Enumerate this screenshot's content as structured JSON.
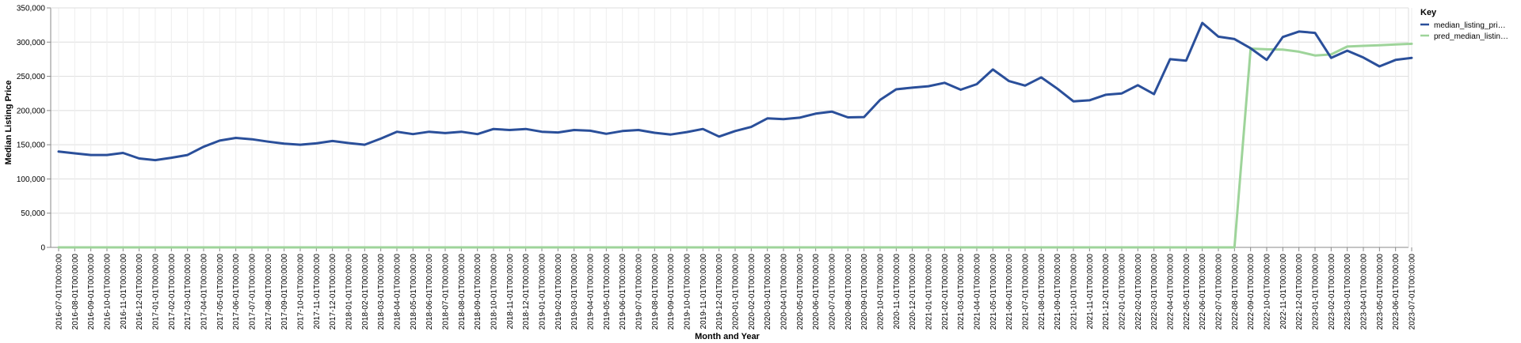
{
  "chart_data": {
    "type": "line",
    "title": "",
    "xlabel": "Month and Year",
    "ylabel": "Median Listing Price",
    "ylim": [
      0,
      350000
    ],
    "yticks": [
      "0",
      "50,000",
      "100,000",
      "150,000",
      "200,000",
      "250,000",
      "300,000",
      "350,000"
    ],
    "ytick_values": [
      0,
      50000,
      100000,
      150000,
      200000,
      250000,
      300000,
      350000
    ],
    "grid": true,
    "legend_position": "right",
    "legend_title": "Key",
    "categories": [
      "2016-07-01T00:00:00",
      "2016-08-01T00:00:00",
      "2016-09-01T00:00:00",
      "2016-10-01T00:00:00",
      "2016-11-01T00:00:00",
      "2016-12-01T00:00:00",
      "2017-01-01T00:00:00",
      "2017-02-01T00:00:00",
      "2017-03-01T00:00:00",
      "2017-04-01T00:00:00",
      "2017-05-01T00:00:00",
      "2017-06-01T00:00:00",
      "2017-07-01T00:00:00",
      "2017-08-01T00:00:00",
      "2017-09-01T00:00:00",
      "2017-10-01T00:00:00",
      "2017-11-01T00:00:00",
      "2017-12-01T00:00:00",
      "2018-01-01T00:00:00",
      "2018-02-01T00:00:00",
      "2018-03-01T00:00:00",
      "2018-04-01T00:00:00",
      "2018-05-01T00:00:00",
      "2018-06-01T00:00:00",
      "2018-07-01T00:00:00",
      "2018-08-01T00:00:00",
      "2018-09-01T00:00:00",
      "2018-10-01T00:00:00",
      "2018-11-01T00:00:00",
      "2018-12-01T00:00:00",
      "2019-01-01T00:00:00",
      "2019-02-01T00:00:00",
      "2019-03-01T00:00:00",
      "2019-04-01T00:00:00",
      "2019-05-01T00:00:00",
      "2019-06-01T00:00:00",
      "2019-07-01T00:00:00",
      "2019-08-01T00:00:00",
      "2019-09-01T00:00:00",
      "2019-10-01T00:00:00",
      "2019-11-01T00:00:00",
      "2019-12-01T00:00:00",
      "2020-01-01T00:00:00",
      "2020-02-01T00:00:00",
      "2020-03-01T00:00:00",
      "2020-04-01T00:00:00",
      "2020-05-01T00:00:00",
      "2020-06-01T00:00:00",
      "2020-07-01T00:00:00",
      "2020-08-01T00:00:00",
      "2020-09-01T00:00:00",
      "2020-10-01T00:00:00",
      "2020-11-01T00:00:00",
      "2020-12-01T00:00:00",
      "2021-01-01T00:00:00",
      "2021-02-01T00:00:00",
      "2021-03-01T00:00:00",
      "2021-04-01T00:00:00",
      "2021-05-01T00:00:00",
      "2021-06-01T00:00:00",
      "2021-07-01T00:00:00",
      "2021-08-01T00:00:00",
      "2021-09-01T00:00:00",
      "2021-10-01T00:00:00",
      "2021-11-01T00:00:00",
      "2021-12-01T00:00:00",
      "2022-01-01T00:00:00",
      "2022-02-01T00:00:00",
      "2022-03-01T00:00:00",
      "2022-04-01T00:00:00",
      "2022-05-01T00:00:00",
      "2022-06-01T00:00:00",
      "2022-07-01T00:00:00",
      "2022-08-01T00:00:00",
      "2022-09-01T00:00:00",
      "2022-10-01T00:00:00",
      "2022-11-01T00:00:00",
      "2022-12-01T00:00:00",
      "2023-01-01T00:00:00",
      "2023-02-01T00:00:00",
      "2023-03-01T00:00:00",
      "2023-04-01T00:00:00",
      "2023-05-01T00:00:00",
      "2023-06-01T00:00:00",
      "2023-07-01T00:00:00"
    ],
    "xtick_labels": [
      "2016-07-01T00:00:00",
      "2016-08-01T00:00:00",
      "2016-09-01T00:00:00",
      "2016-10-01T00:00:00",
      "2016-11-01T00:00:00",
      "2016-12-01T00:00:00",
      "2017-01-01T00:00:00",
      "2017-02-01T00:00:00",
      "2017-03-01T00:00:00",
      "2017-04-01T00:00:00",
      "2017-05-01T00:00:00",
      "2017-06-01T00:00:00",
      "2017-07-01T00:00:00",
      "2017-08-01T00:00:00",
      "2017-09-01T00:00:00",
      "2017-10-01T00:00:00",
      "2017-11-01T00:00:00",
      "2017-12-01T00:00:00",
      "2018-01-01T00:00:00",
      "2018-02-01T00:00:00",
      "2018-03-01T00:00:00",
      "2018-04-01T00:00:00",
      "2018-05-01T00:00:00",
      "2018-06-01T00:00:00",
      "2018-07-01T00:00:00",
      "2018-08-01T00:00:00",
      "2018-09-01T00:00:00",
      "2018-10-01T00:00:00",
      "2018-11-01T00:00:00",
      "2018-12-01T00:00:00",
      "2019-01-01T00:00:00",
      "2019-02-01T00:00:00",
      "2019-03-01T00:00:00",
      "2019-04-01T00:00:00",
      "2019-05-01T00:00:00",
      "2019-06-01T00:00:00",
      "2019-07-01T00:00:00",
      "2019-08-01T00:00:00",
      "2019-09-01T00:00:00",
      "2019-10-01T00:00:00",
      "2019-11-01T00:00:00",
      "2019-12-01T00:00:00",
      "2020-01-01T00:00:00",
      "2020-02-01T00:00:00",
      "2020-03-01T00:00:00",
      "2020-04-01T00:00:00",
      "2020-05-01T00:00:00",
      "2020-06-01T00:00:00",
      "2020-07-01T00:00:00",
      "2020-08-01T00:00:00",
      "2020-09-01T00:00:00",
      "2020-10-01T00:00:00",
      "2020-11-01T00:00:00",
      "2020-12-01T00:00:00",
      "2021-01-01T00:00:00",
      "2021-02-01T00:00:00",
      "2021-03-01T00:00:00",
      "2021-04-01T00:00:00",
      "2021-05-01T00:00:00",
      "2021-06-01T00:00:00",
      "2021-07-01T00:00:00",
      "2021-08-01T00:00:00",
      "2021-09-01T00:00:00",
      "2021-10-01T00:00:00",
      "2021-11-01T00:00:00",
      "2021-12-01T00:00:00",
      "2022-01-01T00:00:00",
      "2022-02-01T00:00:00",
      "2022-03-01T00:00:00",
      "2022-04-01T00:00:00",
      "2022-05-01T00:00:00",
      "2022-06-01T00:00:00",
      "2022-07-01T00:00:00",
      "2022-08-01T00:00:00",
      "2022-09-01T00:00:00",
      "2022-10-01T00:00:00",
      "2022-11-01T00:00:00",
      "2022-12-01T00:00:00",
      "2023-01-01T00:00:00",
      "2023-02-01T00:00:00",
      "2023-03-01T00:00:00",
      "2023-04-01T00:00:00",
      "2023-05-01T00:00:00",
      "2023-06-01T00:00:00",
      "2023-07-01T00:00:00"
    ],
    "series": [
      {
        "name": "median_listing_pri…",
        "color": "#2a4f9a",
        "values": [
          140000,
          137500,
          135000,
          135000,
          138000,
          130000,
          127500,
          131000,
          135000,
          147000,
          156000,
          160000,
          158000,
          154500,
          151500,
          150000,
          152000,
          155500,
          152500,
          150000,
          159000,
          169000,
          165500,
          169000,
          167000,
          169000,
          165500,
          173000,
          171500,
          173000,
          169000,
          168000,
          171500,
          170500,
          166000,
          170000,
          171500,
          167500,
          165000,
          168500,
          173000,
          162000,
          170000,
          176000,
          188500,
          187500,
          189500,
          195500,
          198500,
          190000,
          190500,
          215500,
          231000,
          233500,
          235500,
          240500,
          230500,
          238500,
          260000,
          243000,
          236500,
          248500,
          232000,
          213500,
          215000,
          223000,
          225000,
          237000,
          224000,
          275000,
          273000,
          328000,
          308000,
          304500,
          291000,
          274000,
          307500,
          315500,
          313500,
          277000,
          287500,
          277500,
          264500,
          274000,
          277000
        ]
      },
      {
        "name": "pred_median_listin…",
        "color": "#9ed49a",
        "values": [
          0,
          0,
          0,
          0,
          0,
          0,
          0,
          0,
          0,
          0,
          0,
          0,
          0,
          0,
          0,
          0,
          0,
          0,
          0,
          0,
          0,
          0,
          0,
          0,
          0,
          0,
          0,
          0,
          0,
          0,
          0,
          0,
          0,
          0,
          0,
          0,
          0,
          0,
          0,
          0,
          0,
          0,
          0,
          0,
          0,
          0,
          0,
          0,
          0,
          0,
          0,
          0,
          0,
          0,
          0,
          0,
          0,
          0,
          0,
          0,
          0,
          0,
          0,
          0,
          0,
          0,
          0,
          0,
          0,
          0,
          0,
          0,
          0,
          0,
          290500,
          289500,
          289000,
          286000,
          280500,
          282000,
          293500,
          294500,
          295500,
          296500,
          297500
        ]
      }
    ]
  }
}
